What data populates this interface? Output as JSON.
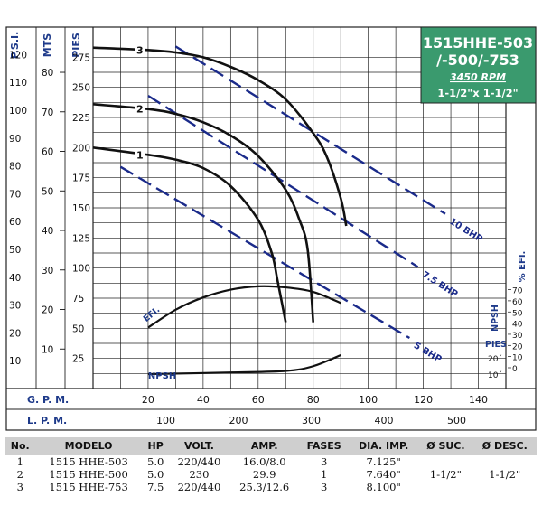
{
  "title_box": {
    "line1": "1515HHE-503",
    "line2": "/-500/-753",
    "rpm": "3450 RPM",
    "size": "1-1/2\"x 1-1/2\"",
    "bg_color": "#3a9a6e"
  },
  "colors": {
    "axis_text": "#1e3a8a",
    "bhp": "#1a2a8a",
    "curve": "#111111"
  },
  "chart_data": {
    "type": "line",
    "x_axes": [
      {
        "label": "G. P. M.",
        "ticks": [
          20,
          40,
          60,
          80,
          100,
          120,
          140
        ],
        "range": [
          0,
          150
        ]
      },
      {
        "label": "L. P. M.",
        "ticks": [
          100,
          200,
          300,
          400,
          500
        ],
        "range": [
          0,
          567.75
        ]
      }
    ],
    "y_axes": [
      {
        "label": "P.S.I.",
        "ticks": [
          10,
          20,
          30,
          40,
          50,
          60,
          70,
          80,
          90,
          100,
          110,
          120
        ]
      },
      {
        "label": "MTS",
        "ticks": [
          10,
          20,
          30,
          40,
          50,
          60,
          70,
          80
        ]
      },
      {
        "label": "PIES",
        "ticks": [
          25,
          50,
          75,
          100,
          125,
          150,
          175,
          200,
          225,
          250,
          275
        ],
        "range": [
          0,
          300
        ]
      }
    ],
    "right_axes": [
      {
        "label": "% EFI.",
        "ticks": [
          0,
          10,
          20,
          30,
          40,
          50,
          60,
          70
        ]
      },
      {
        "label": "NPSH",
        "unit_label": "PIES",
        "ticks": [
          "20´",
          "10´"
        ]
      }
    ],
    "series": [
      {
        "name": "1",
        "x": [
          0,
          20,
          30,
          40,
          50,
          60,
          65,
          67,
          70
        ],
        "y": [
          200,
          194,
          190,
          183,
          168,
          140,
          112,
          90,
          55
        ]
      },
      {
        "name": "2",
        "x": [
          0,
          20,
          30,
          40,
          50,
          60,
          70,
          75,
          78,
          80
        ],
        "y": [
          236,
          232,
          228,
          221,
          210,
          193,
          165,
          140,
          115,
          55
        ]
      },
      {
        "name": "3",
        "x": [
          0,
          20,
          30,
          40,
          50,
          60,
          70,
          80,
          85,
          90,
          92
        ],
        "y": [
          283,
          281,
          279,
          275,
          267,
          256,
          240,
          212,
          192,
          158,
          135
        ]
      }
    ],
    "bhp_lines": [
      {
        "label": "10 BHP",
        "x": [
          30,
          128
        ],
        "y": [
          284,
          145
        ]
      },
      {
        "label": "7.5 BHP",
        "x": [
          20,
          118
        ],
        "y": [
          243,
          101
        ]
      },
      {
        "label": "5 BHP",
        "x": [
          10,
          115
        ],
        "y": [
          184,
          42
        ]
      }
    ],
    "efficiency": {
      "label": "EFI.",
      "x": [
        20,
        30,
        40,
        50,
        60,
        70,
        80,
        90
      ],
      "y": [
        36,
        52,
        63,
        70,
        73,
        72,
        68,
        58
      ]
    },
    "npsh": {
      "label": "NPSH",
      "x": [
        20,
        50,
        70,
        80,
        90
      ],
      "y": [
        8,
        9,
        10,
        13,
        20
      ]
    },
    "grid": true
  },
  "specs_table": {
    "columns": [
      "No.",
      "MODELO",
      "HP",
      "VOLT.",
      "AMP.",
      "FASES",
      "DIA. IMP.",
      "Ø SUC.",
      "Ø DESC."
    ],
    "rows": [
      [
        "1",
        "1515 HHE-503",
        "5.0",
        "220/440",
        "16.0/8.0",
        "3",
        "7.125\""
      ],
      [
        "2",
        "1515 HHE-500",
        "5.0",
        "230",
        "29.9",
        "1",
        "7.640\""
      ],
      [
        "3",
        "1515 HHE-753",
        "7.5",
        "220/440",
        "25.3/12.6",
        "3",
        "8.100\""
      ]
    ],
    "suction": "1-1/2\"",
    "discharge": "1-1/2\""
  }
}
